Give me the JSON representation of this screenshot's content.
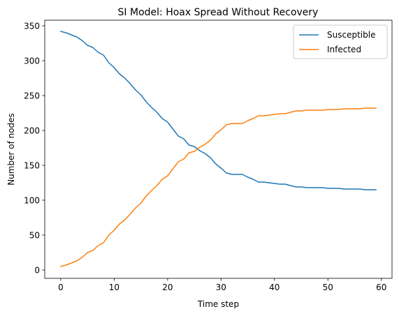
{
  "chart_data": {
    "type": "line",
    "title": "SI Model: Hoax Spread Without Recovery",
    "xlabel": "Time step",
    "ylabel": "Number of nodes",
    "xlim": [
      -3,
      62
    ],
    "ylim": [
      -12,
      358
    ],
    "xticks": [
      0,
      10,
      20,
      30,
      40,
      50,
      60
    ],
    "yticks": [
      0,
      50,
      100,
      150,
      200,
      250,
      300,
      350
    ],
    "grid": false,
    "legend_position": "top-right",
    "x": [
      0,
      1,
      2,
      3,
      4,
      5,
      6,
      7,
      8,
      9,
      10,
      11,
      12,
      13,
      14,
      15,
      16,
      17,
      18,
      19,
      20,
      21,
      22,
      23,
      24,
      25,
      26,
      27,
      28,
      29,
      30,
      31,
      32,
      33,
      34,
      35,
      36,
      37,
      38,
      39,
      40,
      41,
      42,
      43,
      44,
      45,
      46,
      47,
      48,
      49,
      50,
      51,
      52,
      53,
      54,
      55,
      56,
      57,
      58,
      59
    ],
    "series": [
      {
        "name": "Susceptible",
        "color": "#1f77b4",
        "values": [
          342,
          340,
          337,
          334,
          329,
          322,
          319,
          312,
          308,
          297,
          290,
          281,
          275,
          267,
          258,
          251,
          241,
          233,
          226,
          217,
          212,
          202,
          192,
          188,
          179,
          177,
          171,
          167,
          161,
          152,
          146,
          139,
          137,
          137,
          137,
          133,
          130,
          126,
          126,
          125,
          124,
          123,
          123,
          121,
          119,
          119,
          118,
          118,
          118,
          118,
          117,
          117,
          117,
          116,
          116,
          116,
          116,
          115,
          115,
          115
        ]
      },
      {
        "name": "Infected",
        "color": "#ff7f0e",
        "values": [
          5,
          7,
          10,
          13,
          18,
          25,
          28,
          35,
          39,
          50,
          57,
          66,
          72,
          80,
          89,
          96,
          106,
          114,
          121,
          130,
          135,
          145,
          155,
          159,
          168,
          170,
          176,
          180,
          186,
          195,
          201,
          208,
          210,
          210,
          210,
          214,
          217,
          221,
          221,
          222,
          223,
          224,
          224,
          226,
          228,
          228,
          229,
          229,
          229,
          229,
          230,
          230,
          230,
          231,
          231,
          231,
          231,
          232,
          232,
          232
        ]
      }
    ]
  }
}
